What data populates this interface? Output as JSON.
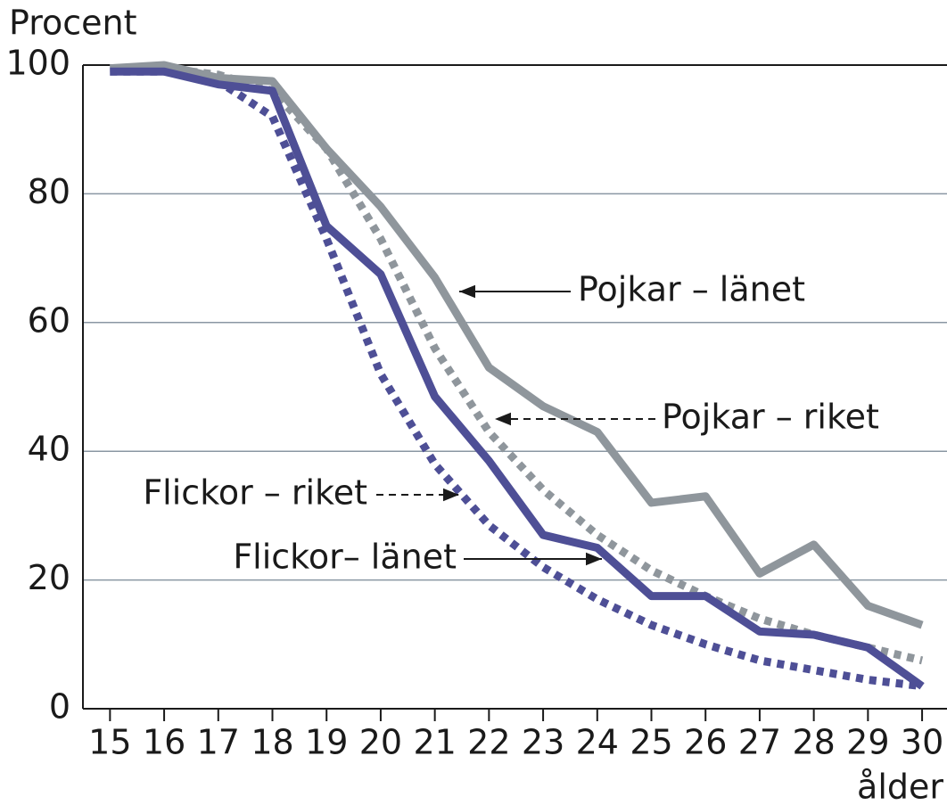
{
  "chart_data": {
    "type": "line",
    "ylabel": "Procent",
    "xlabel": "ålder",
    "x": [
      15,
      16,
      17,
      18,
      19,
      20,
      21,
      22,
      23,
      24,
      25,
      26,
      27,
      28,
      29,
      30
    ],
    "xlim": [
      14.5,
      30.46
    ],
    "xticks": [
      15,
      16,
      17,
      18,
      19,
      20,
      21,
      22,
      23,
      24,
      25,
      26,
      27,
      28,
      29,
      30
    ],
    "ylim": [
      0,
      100
    ],
    "yticks": [
      0,
      20,
      40,
      60,
      80,
      100
    ],
    "grid": true,
    "series": [
      {
        "name": "Pojkar – länet",
        "color": "#8f969c",
        "line_style": "solid",
        "values": [
          99.5,
          100,
          98,
          97.5,
          87,
          78,
          67,
          53,
          47,
          43,
          32,
          33,
          21,
          25.5,
          16,
          13
        ]
      },
      {
        "name": "Pojkar – riket",
        "color": "#8f969c",
        "line_style": "dotted",
        "values": [
          99.5,
          99.5,
          98.5,
          96,
          87,
          73,
          56,
          43,
          34,
          27,
          21.5,
          17.5,
          14,
          11.5,
          9.5,
          7.5
        ]
      },
      {
        "name": "Flickor– länet",
        "color": "#4e4f96",
        "line_style": "solid",
        "values": [
          99,
          99,
          97,
          96,
          75,
          67.5,
          48.5,
          38.5,
          27,
          25,
          17.5,
          17.5,
          12,
          11.5,
          9.5,
          3.5
        ]
      },
      {
        "name": "Flickor – riket",
        "color": "#4e4f96",
        "line_style": "dotted",
        "values": [
          99,
          99,
          97.5,
          92,
          73,
          52,
          38,
          28.5,
          22,
          17,
          13,
          10,
          7.5,
          6,
          4.5,
          3.5
        ]
      }
    ]
  }
}
